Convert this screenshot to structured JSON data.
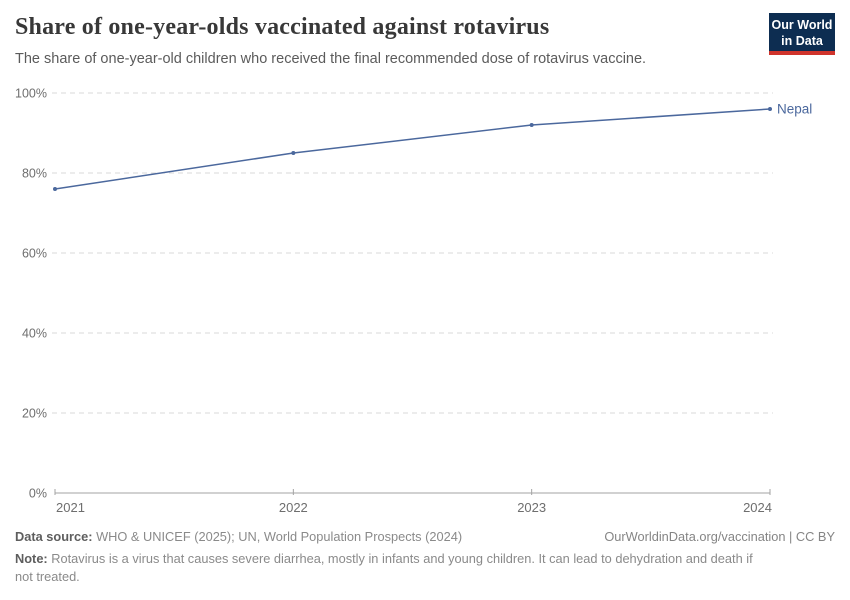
{
  "header": {
    "title": "Share of one-year-olds vaccinated against rotavirus",
    "subtitle": "The share of one-year-old children who received the final recommended dose of rotavirus vaccine.",
    "logo": {
      "line1": "Our World",
      "line2": "in Data",
      "bg": "#0d2d51",
      "accent": "#d0342c"
    }
  },
  "chart_data": {
    "type": "line",
    "title": "Share of one-year-olds vaccinated against rotavirus",
    "x": [
      2021,
      2022,
      2023,
      2024
    ],
    "series": [
      {
        "name": "Nepal",
        "values": [
          76,
          85,
          92,
          96
        ],
        "color": "#4b689d"
      }
    ],
    "end_label": "Nepal",
    "xlim": [
      2021,
      2024
    ],
    "ylim": [
      0,
      100
    ],
    "x_ticks": [
      {
        "value": 2021,
        "label": "2021"
      },
      {
        "value": 2022,
        "label": "2022"
      },
      {
        "value": 2023,
        "label": "2023"
      },
      {
        "value": 2024,
        "label": "2024"
      }
    ],
    "y_ticks": [
      {
        "value": 0,
        "label": "0%"
      },
      {
        "value": 20,
        "label": "20%"
      },
      {
        "value": 40,
        "label": "40%"
      },
      {
        "value": 60,
        "label": "60%"
      },
      {
        "value": 80,
        "label": "80%"
      },
      {
        "value": 100,
        "label": "100%"
      }
    ],
    "grid": "horizontal-dashed",
    "legend_position": "end-of-line"
  },
  "colors": {
    "grid": "#d9d9d9",
    "axis": "#a3a3a3",
    "tick_text": "#6e6e6e",
    "line": "#4b689d"
  },
  "footer": {
    "source_label": "Data source:",
    "source_text": " WHO & UNICEF (2025); UN, World Population Prospects (2024)",
    "citation": "OurWorldinData.org/vaccination | CC BY",
    "note_label": "Note:",
    "note_text": " Rotavirus is a virus that causes severe diarrhea, mostly in infants and young children. It can lead to dehydration and death if not treated."
  }
}
